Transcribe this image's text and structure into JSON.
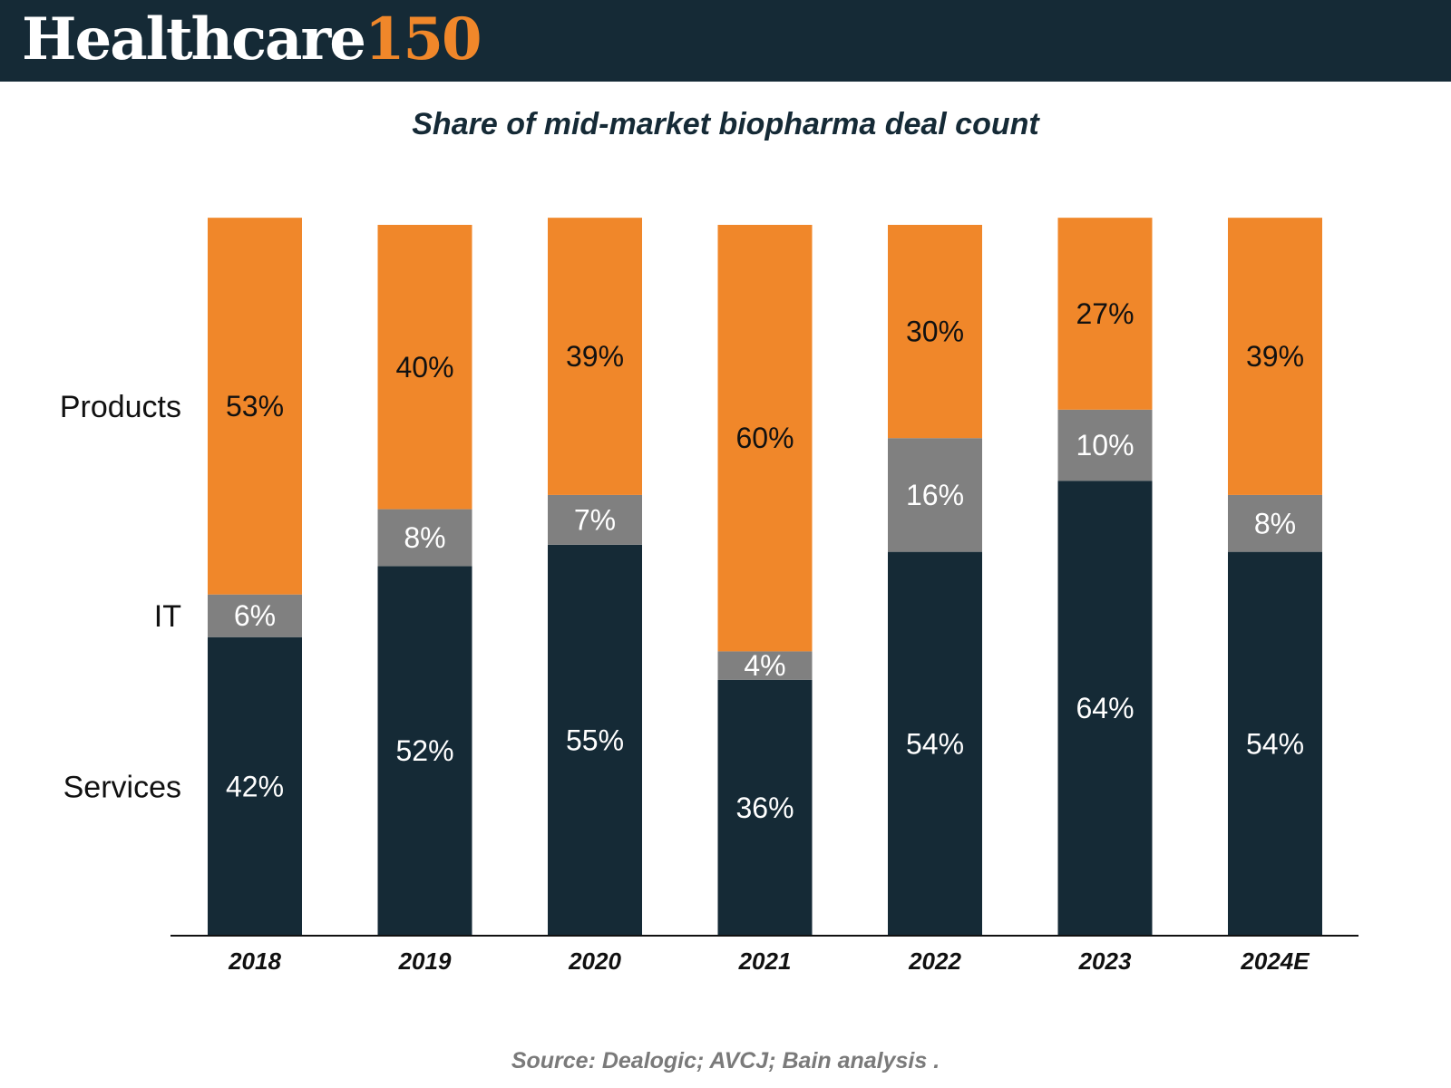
{
  "header": {
    "brand_name": "Healthcare",
    "brand_number": "150"
  },
  "colors": {
    "header_bg": "#152a36",
    "brand_accent": "#f0872a"
  },
  "footer": {
    "source": "Source: Dealogic; AVCJ; Bain analysis ."
  },
  "chart_data": {
    "type": "bar",
    "stacked": true,
    "title": "Share of mid-market biopharma deal count",
    "xlabel": "",
    "ylabel": "",
    "categories": [
      "2018",
      "2019",
      "2020",
      "2021",
      "2022",
      "2023",
      "2024E"
    ],
    "series": [
      {
        "name": "Services",
        "values": [
          42,
          52,
          55,
          36,
          54,
          64,
          54
        ],
        "labels": [
          "42%",
          "52%",
          "55%",
          "36%",
          "54%",
          "64%",
          "54%"
        ],
        "color": "#152a36",
        "label_color": "#ffffff"
      },
      {
        "name": "IT",
        "values": [
          6,
          8,
          7,
          4,
          16,
          10,
          8
        ],
        "labels": [
          "6%",
          "8%",
          "7%",
          "4%",
          "16%",
          "10%",
          "8%"
        ],
        "color": "#808080",
        "label_color": "#ffffff"
      },
      {
        "name": "Products",
        "values": [
          53,
          40,
          39,
          60,
          30,
          27,
          39
        ],
        "labels": [
          "53%",
          "40%",
          "39%",
          "60%",
          "30%",
          "27%",
          "39%"
        ],
        "color": "#f0872a",
        "label_color": "#111111"
      }
    ],
    "ylim": [
      0,
      100
    ],
    "grid": false,
    "legend": "left, category labels beside first bar"
  }
}
